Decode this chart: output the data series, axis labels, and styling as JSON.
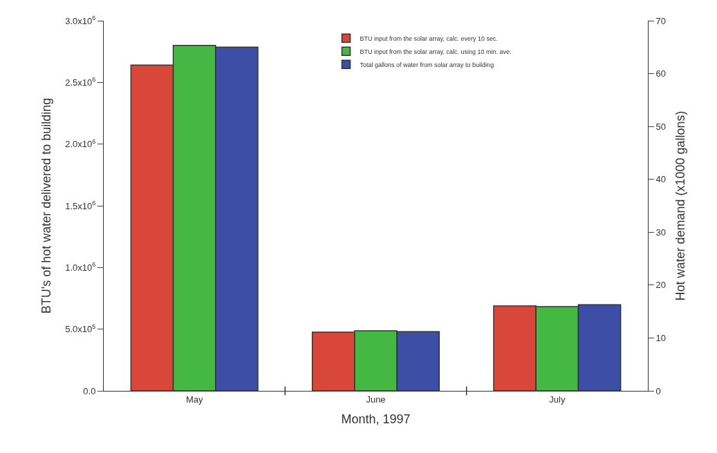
{
  "chart_data": {
    "type": "bar",
    "xlabel": "Month, 1997",
    "ylabel": "BTU's of hot water delivered to building",
    "y2label": "Hot water demand (x1000 gallons)",
    "categories": [
      "May",
      "June",
      "July"
    ],
    "series": [
      {
        "name": "BTU input from the solar array, calc. every 10 sec.",
        "color": "#d9473b",
        "values": [
          2640000,
          476000,
          688000
        ]
      },
      {
        "name": "BTU input from the solar array, calc. using 10 min. ave.",
        "color": "#45b843",
        "values": [
          2800000,
          487000,
          683000
        ]
      },
      {
        "name": "Total gallons of water from solar array to building",
        "color": "#3c4ea6",
        "values": [
          65.0,
          11.2,
          16.3
        ],
        "axis": "y2"
      }
    ],
    "ylim": [
      0,
      3000000
    ],
    "yticks": [
      {
        "value": 0,
        "label": "0.0"
      },
      {
        "value": 500000,
        "label": "5.0x10$^{5}$"
      },
      {
        "value": 1000000,
        "label": "1.0x10$^{6}$"
      },
      {
        "value": 1500000,
        "label": "1.5x10$^{6}$"
      },
      {
        "value": 2000000,
        "label": "2.0x10$^{6}$"
      },
      {
        "value": 2500000,
        "label": "2.5x10$^{6}$"
      },
      {
        "value": 3000000,
        "label": "3.0x10$^{6}$"
      }
    ],
    "y2lim": [
      0,
      70
    ],
    "y2ticks": [
      0,
      10,
      20,
      30,
      40,
      50,
      60,
      70
    ],
    "legend": "top right"
  }
}
